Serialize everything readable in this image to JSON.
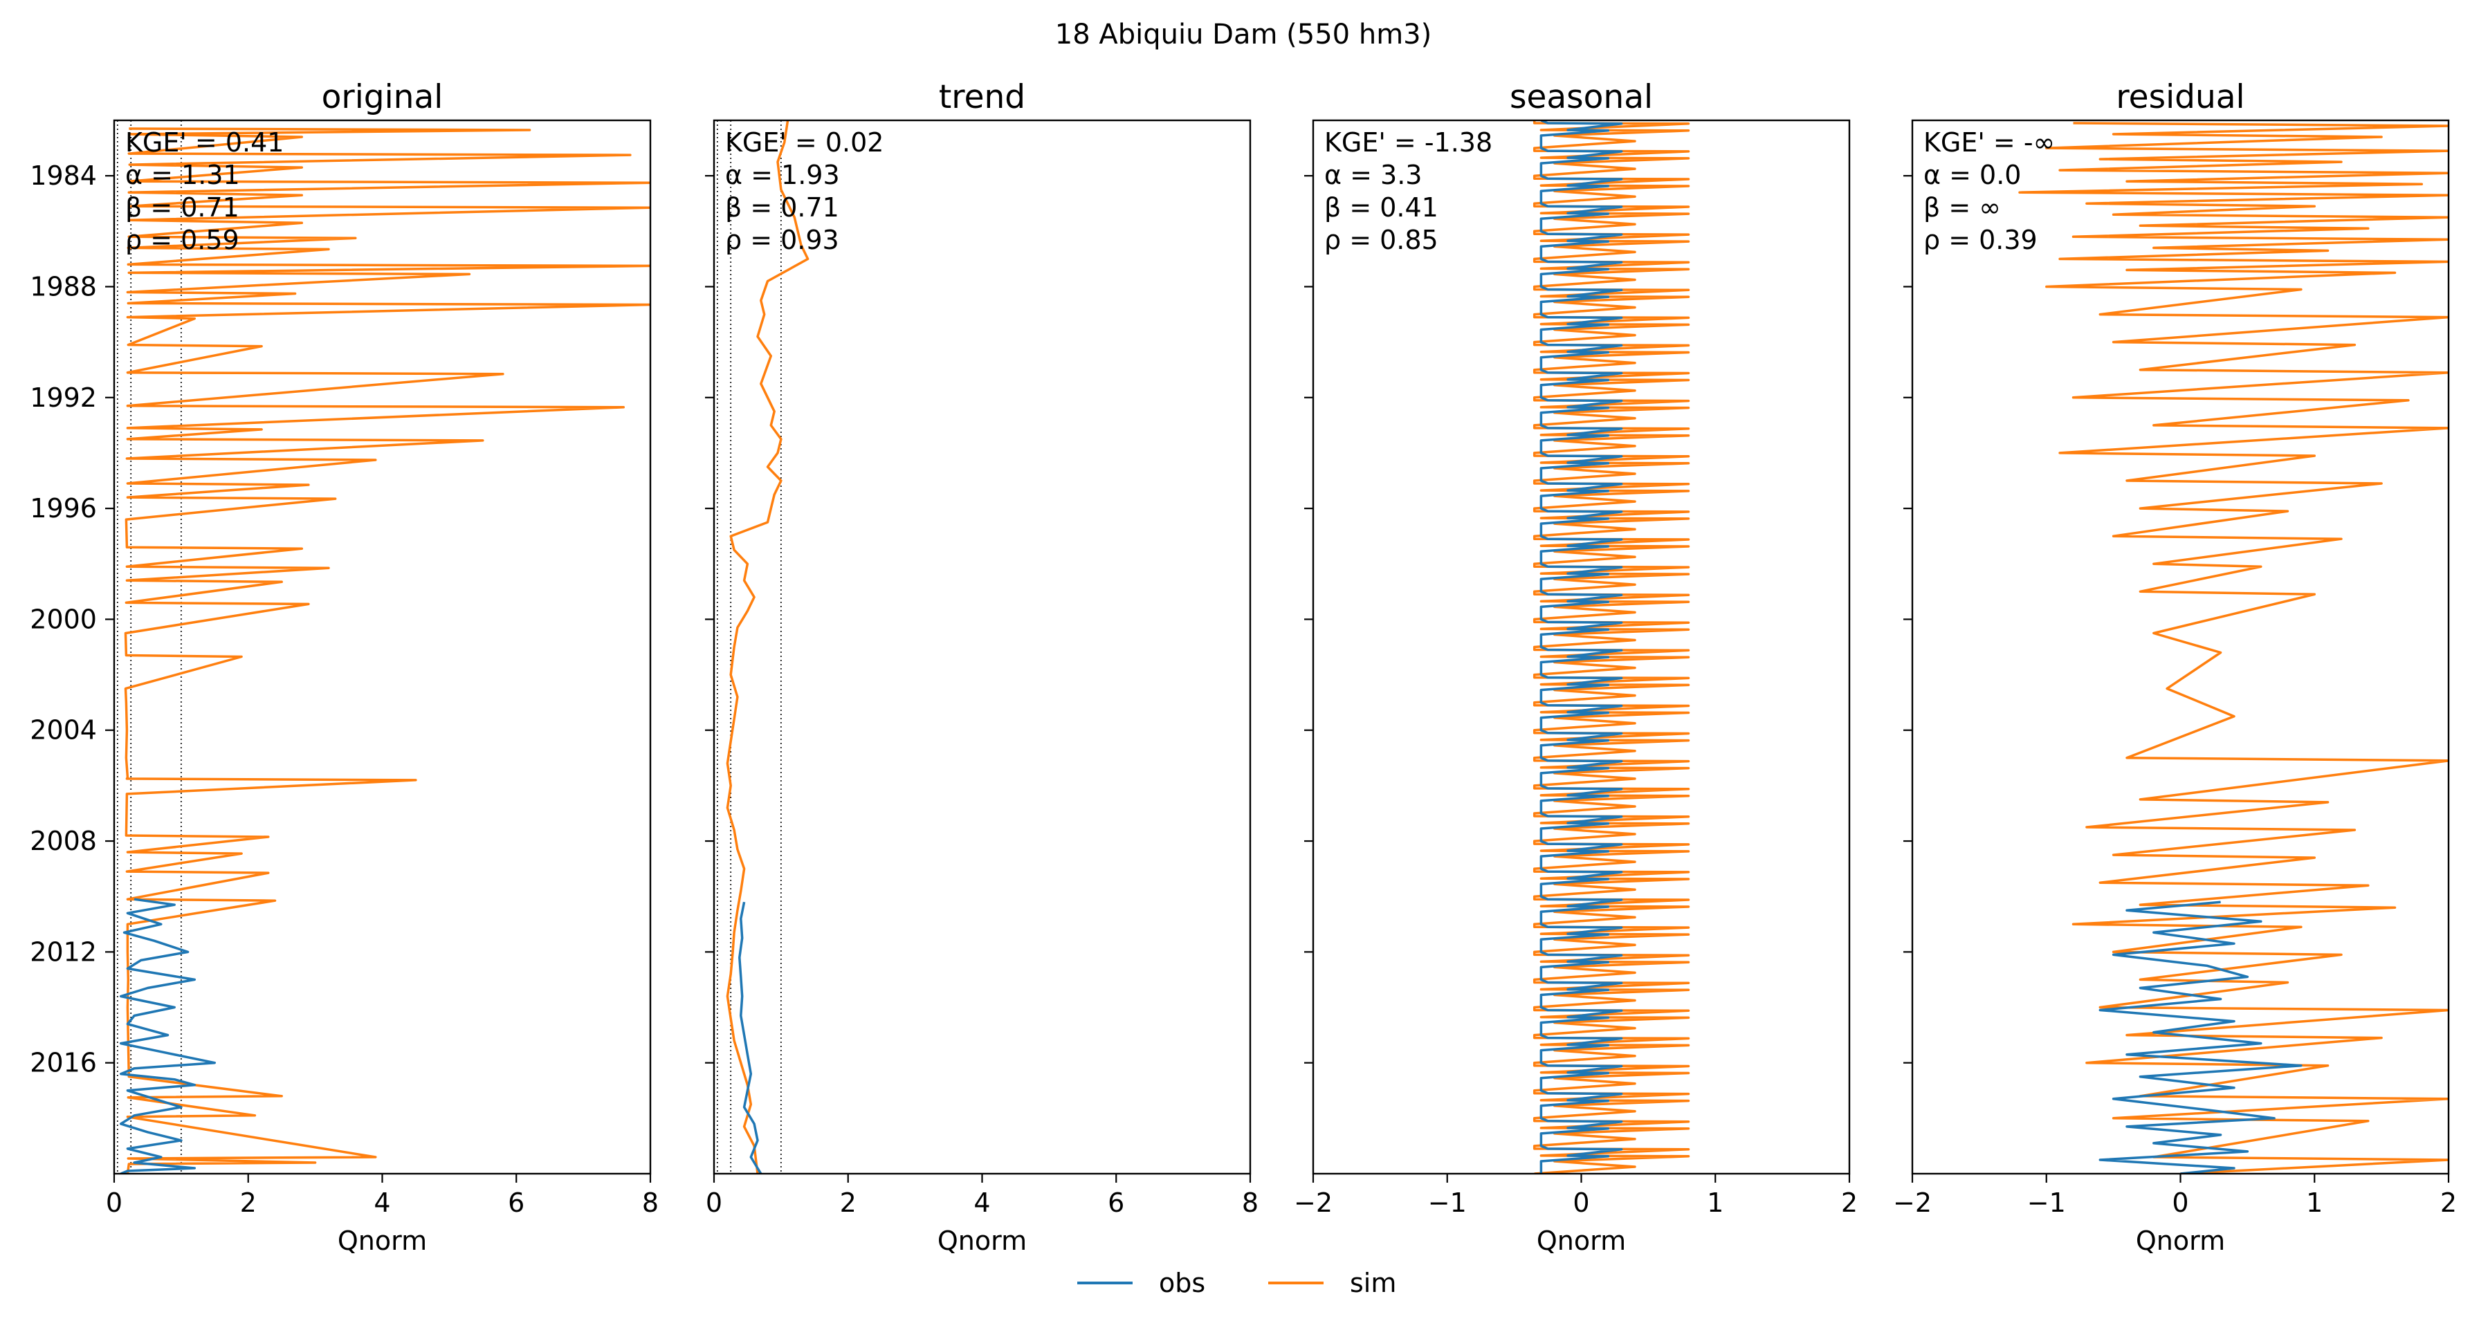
{
  "figure": {
    "suptitle": "18  Abiquiu Dam (550 hm3)"
  },
  "colors": {
    "obs": "#1f77b4",
    "sim": "#ff7f0e",
    "reference_lines": "#000000"
  },
  "legend": {
    "placement": "bottom-center",
    "items": [
      {
        "label": "obs",
        "series": "obs"
      },
      {
        "label": "sim",
        "series": "sim"
      }
    ]
  },
  "chart_data": [
    {
      "type": "line",
      "title": "original",
      "xlabel": "Qnorm",
      "ylabel": "",
      "orientation": "horizontal-time",
      "xlim": [
        0,
        8
      ],
      "xticks": [
        0,
        2,
        4,
        6,
        8
      ],
      "ylim": [
        1982.0,
        2020.0
      ],
      "yticks": [
        1984,
        1988,
        1992,
        1996,
        2000,
        2004,
        2008,
        2012,
        2016
      ],
      "reference_lines_x": [
        0.05,
        0.25,
        1.0
      ],
      "stats": [
        "KGE' = 0.41",
        "α = 1.31",
        "β = 0.71",
        "ρ = 0.59"
      ],
      "series": [
        {
          "name": "sim",
          "x": [
            0.22,
            6.2,
            0.23,
            2.8,
            0.22,
            7.7,
            0.23,
            2.8,
            0.22,
            8.0,
            0.22,
            2.8,
            0.23,
            8.0,
            0.22,
            2.8,
            0.22,
            3.6,
            0.21,
            3.2,
            0.21,
            8.0,
            0.22,
            5.3,
            0.2,
            2.7,
            0.21,
            8.0,
            0.2,
            1.2,
            0.21,
            2.2,
            0.2,
            5.8,
            0.2,
            7.6,
            0.2,
            2.2,
            0.2,
            5.5,
            0.19,
            3.9,
            0.2,
            2.9,
            0.2,
            3.3,
            0.18,
            0.19,
            2.8,
            0.19,
            3.2,
            0.19,
            2.5,
            0.18,
            2.9,
            0.17,
            0.18,
            1.9,
            0.17,
            0.18,
            0.19,
            0.18,
            0.2,
            0.19,
            4.5,
            0.19,
            0.18,
            2.3,
            0.2,
            1.9,
            0.19,
            2.3,
            0.2,
            2.4,
            0.2,
            0.2,
            0.21,
            0.2,
            0.22,
            2.5,
            0.21,
            2.1,
            0.2,
            3.9,
            0.21,
            3.0,
            0.22,
            0.2
          ],
          "y": [
            1982.3,
            1982.35,
            1982.5,
            1982.6,
            1983.2,
            1983.25,
            1983.6,
            1983.7,
            1984.2,
            1984.25,
            1984.6,
            1984.7,
            1985.1,
            1985.15,
            1985.6,
            1985.7,
            1986.2,
            1986.25,
            1986.6,
            1986.65,
            1987.2,
            1987.25,
            1987.5,
            1987.55,
            1988.2,
            1988.25,
            1988.6,
            1988.65,
            1989.1,
            1989.15,
            1990.1,
            1990.15,
            1991.1,
            1991.15,
            1992.3,
            1992.35,
            1993.1,
            1993.15,
            1993.5,
            1993.55,
            1994.2,
            1994.25,
            1995.1,
            1995.15,
            1995.6,
            1995.65,
            1996.4,
            1997.4,
            1997.45,
            1998.1,
            1998.15,
            1998.6,
            1998.65,
            1999.4,
            1999.45,
            2000.5,
            2001.3,
            2001.35,
            2002.5,
            2003.0,
            2004.0,
            2005.0,
            2005.7,
            2005.75,
            2005.8,
            2006.3,
            2007.8,
            2007.85,
            2008.4,
            2008.45,
            2009.1,
            2009.15,
            2010.1,
            2010.15,
            2011.0,
            2012.0,
            2013.0,
            2014.0,
            2016.5,
            2017.2,
            2017.25,
            2017.9,
            2017.95,
            2019.4,
            2019.45,
            2019.6,
            2019.65,
            2020.0
          ]
        },
        {
          "name": "obs",
          "x": [
            0.3,
            0.9,
            0.2,
            0.7,
            0.15,
            0.6,
            1.1,
            0.4,
            0.2,
            1.2,
            0.5,
            0.1,
            0.9,
            0.3,
            0.2,
            0.8,
            0.1,
            0.7,
            1.5,
            0.3,
            0.1,
            0.9,
            1.2,
            0.2,
            0.6,
            1.0,
            0.3,
            0.1,
            0.5,
            1.0,
            0.2,
            0.7,
            0.3,
            1.2,
            0.2,
            0.1
          ],
          "y": [
            2010.1,
            2010.3,
            2010.6,
            2011.0,
            2011.3,
            2011.6,
            2012.0,
            2012.3,
            2012.6,
            2013.0,
            2013.3,
            2013.6,
            2014.0,
            2014.3,
            2014.6,
            2015.0,
            2015.3,
            2015.6,
            2016.0,
            2016.2,
            2016.4,
            2016.6,
            2016.8,
            2017.0,
            2017.3,
            2017.6,
            2017.9,
            2018.2,
            2018.5,
            2018.8,
            2019.1,
            2019.4,
            2019.6,
            2019.8,
            2019.9,
            2020.0
          ]
        }
      ]
    },
    {
      "type": "line",
      "title": "trend",
      "xlabel": "Qnorm",
      "ylabel": "",
      "orientation": "horizontal-time",
      "xlim": [
        0,
        8
      ],
      "xticks": [
        0,
        2,
        4,
        6,
        8
      ],
      "ylim": [
        1982.0,
        2020.0
      ],
      "yticks": [
        1984,
        1988,
        1992,
        1996,
        2000,
        2004,
        2008,
        2012,
        2016
      ],
      "reference_lines_x": [
        0.05,
        0.25,
        1.0
      ],
      "stats": [
        "KGE' = 0.02",
        "α = 1.93",
        "β = 0.71",
        "ρ = 0.93"
      ],
      "series": [
        {
          "name": "sim",
          "x": [
            1.1,
            1.05,
            0.95,
            1.0,
            1.2,
            1.3,
            1.4,
            0.8,
            0.7,
            0.75,
            0.65,
            0.85,
            0.7,
            0.8,
            0.9,
            0.85,
            1.0,
            0.95,
            0.8,
            1.0,
            0.9,
            0.85,
            0.8,
            0.25,
            0.3,
            0.5,
            0.45,
            0.6,
            0.5,
            0.35,
            0.3,
            0.25,
            0.35,
            0.3,
            0.25,
            0.2,
            0.25,
            0.2,
            0.3,
            0.35,
            0.45,
            0.4,
            0.35,
            0.3,
            0.28,
            0.25,
            0.2,
            0.25,
            0.3,
            0.4,
            0.5,
            0.55,
            0.45,
            0.6,
            0.65
          ],
          "y": [
            1982.0,
            1982.8,
            1983.5,
            1984.5,
            1985.5,
            1986.5,
            1987.0,
            1987.8,
            1988.5,
            1989.0,
            1989.8,
            1990.5,
            1991.5,
            1992.0,
            1992.5,
            1993.0,
            1993.5,
            1994.0,
            1994.5,
            1995.0,
            1995.5,
            1996.0,
            1996.5,
            1997.0,
            1997.5,
            1998.0,
            1998.6,
            1999.2,
            1999.7,
            2000.3,
            2001.0,
            2002.0,
            2002.8,
            2003.6,
            2004.4,
            2005.2,
            2006.0,
            2006.8,
            2007.6,
            2008.3,
            2009.0,
            2009.8,
            2010.5,
            2011.3,
            2012.0,
            2012.8,
            2013.6,
            2014.4,
            2015.2,
            2016.0,
            2016.8,
            2017.5,
            2018.3,
            2019.0,
            2020.0
          ]
        },
        {
          "name": "obs",
          "x": [
            0.45,
            0.4,
            0.42,
            0.38,
            0.4,
            0.42,
            0.4,
            0.45,
            0.5,
            0.55,
            0.5,
            0.45,
            0.6,
            0.65,
            0.55,
            0.7
          ],
          "y": [
            2010.2,
            2010.8,
            2011.5,
            2012.2,
            2012.9,
            2013.6,
            2014.3,
            2015.0,
            2015.7,
            2016.4,
            2017.0,
            2017.6,
            2018.2,
            2018.8,
            2019.4,
            2020.0
          ]
        }
      ]
    },
    {
      "type": "line",
      "title": "seasonal",
      "xlabel": "Qnorm",
      "ylabel": "",
      "orientation": "horizontal-time",
      "xlim": [
        -2,
        2
      ],
      "xticks": [
        -2,
        -1,
        0,
        1,
        2
      ],
      "ylim": [
        1982.0,
        2020.0
      ],
      "yticks": [
        1984,
        1988,
        1992,
        1996,
        2000,
        2004,
        2008,
        2012,
        2016
      ],
      "reference_lines_x": [],
      "stats": [
        "KGE' = -1.38",
        "α = 3.3",
        "β = 0.41",
        "ρ = 0.85"
      ],
      "seasonal_pattern": {
        "period_years": 1.0,
        "start_year": 1982.0,
        "end_year": 2020.0,
        "sim_x": [
          -0.35,
          -0.35,
          0.8,
          -0.3,
          0.8,
          -0.2,
          0.4,
          -0.35
        ],
        "obs_x": [
          -0.3,
          -0.25,
          0.3,
          -0.1,
          0.2,
          -0.3,
          -0.3,
          -0.3
        ],
        "phase": [
          0.0,
          0.1,
          0.12,
          0.35,
          0.37,
          0.55,
          0.75,
          1.0
        ]
      },
      "series": [
        {
          "name": "sim"
        },
        {
          "name": "obs"
        }
      ]
    },
    {
      "type": "line",
      "title": "residual",
      "xlabel": "Qnorm",
      "ylabel": "",
      "orientation": "horizontal-time",
      "xlim": [
        -2,
        2
      ],
      "xticks": [
        -2,
        -1,
        0,
        1,
        2
      ],
      "ylim": [
        1982.0,
        2020.0
      ],
      "yticks": [
        1984,
        1988,
        1992,
        1996,
        2000,
        2004,
        2008,
        2012,
        2016
      ],
      "reference_lines_x": [],
      "stats": [
        "KGE' = -∞",
        "α = 0.0",
        "β = ∞",
        "ρ = 0.39"
      ],
      "series": [
        {
          "name": "sim",
          "x": [
            -0.8,
            2.0,
            -0.5,
            1.5,
            -1.0,
            2.0,
            -0.6,
            1.2,
            -0.9,
            2.0,
            -0.4,
            1.8,
            -1.2,
            2.0,
            -0.7,
            1.0,
            -0.5,
            2.0,
            -0.3,
            1.4,
            -0.8,
            2.0,
            -0.2,
            1.1,
            -0.9,
            2.0,
            -0.4,
            1.6,
            -1.0,
            0.9,
            -0.6,
            2.0,
            -0.5,
            1.3,
            -0.3,
            2.0,
            -0.8,
            1.7,
            -0.2,
            2.0,
            -0.9,
            1.0,
            -0.4,
            1.5,
            -0.3,
            0.8,
            -0.5,
            1.2,
            -0.2,
            0.6,
            -0.3,
            1.0,
            -0.2,
            0.3,
            -0.1,
            0.4,
            -0.4,
            2.0,
            -0.3,
            1.1,
            -0.7,
            1.3,
            -0.5,
            1.0,
            -0.6,
            1.4,
            -0.3,
            1.6,
            -0.8,
            0.9,
            -0.5,
            1.2,
            -0.3,
            0.8,
            -0.6,
            2.0,
            -0.4,
            1.5,
            -0.7,
            1.1,
            -0.3,
            2.0,
            -0.5,
            1.4,
            -0.2,
            2.0,
            0.0
          ],
          "y": [
            1982.1,
            1982.2,
            1982.5,
            1982.6,
            1983.0,
            1983.1,
            1983.4,
            1983.5,
            1983.8,
            1983.9,
            1984.2,
            1984.3,
            1984.6,
            1984.7,
            1985.0,
            1985.1,
            1985.4,
            1985.5,
            1985.8,
            1985.9,
            1986.2,
            1986.3,
            1986.6,
            1986.7,
            1987.0,
            1987.1,
            1987.4,
            1987.5,
            1988.0,
            1988.1,
            1989.0,
            1989.1,
            1990.0,
            1990.1,
            1991.0,
            1991.1,
            1992.0,
            1992.1,
            1993.0,
            1993.1,
            1994.0,
            1994.1,
            1995.0,
            1995.1,
            1996.0,
            1996.1,
            1997.0,
            1997.1,
            1998.0,
            1998.1,
            1999.0,
            1999.1,
            2000.5,
            2001.2,
            2002.5,
            2003.5,
            2005.0,
            2005.1,
            2006.5,
            2006.6,
            2007.5,
            2007.6,
            2008.5,
            2008.6,
            2009.5,
            2009.6,
            2010.3,
            2010.4,
            2011.0,
            2011.1,
            2012.0,
            2012.1,
            2013.0,
            2013.1,
            2014.0,
            2014.1,
            2015.0,
            2015.1,
            2016.0,
            2016.1,
            2017.2,
            2017.3,
            2018.0,
            2018.1,
            2019.4,
            2019.5,
            2020.0
          ]
        },
        {
          "name": "obs",
          "x": [
            0.3,
            -0.4,
            0.6,
            -0.2,
            0.4,
            -0.5,
            0.2,
            0.5,
            -0.3,
            0.3,
            -0.6,
            0.4,
            -0.2,
            0.6,
            -0.4,
            0.9,
            -0.3,
            0.4,
            -0.5,
            0.2,
            0.7,
            -0.4,
            0.3,
            -0.2,
            0.5,
            -0.6,
            0.4,
            0.0
          ],
          "y": [
            2010.2,
            2010.5,
            2010.9,
            2011.3,
            2011.7,
            2012.1,
            2012.5,
            2012.9,
            2013.3,
            2013.7,
            2014.1,
            2014.5,
            2014.9,
            2015.3,
            2015.7,
            2016.1,
            2016.5,
            2016.9,
            2017.3,
            2017.7,
            2018.0,
            2018.3,
            2018.6,
            2018.9,
            2019.2,
            2019.5,
            2019.8,
            2020.0
          ]
        }
      ]
    }
  ]
}
